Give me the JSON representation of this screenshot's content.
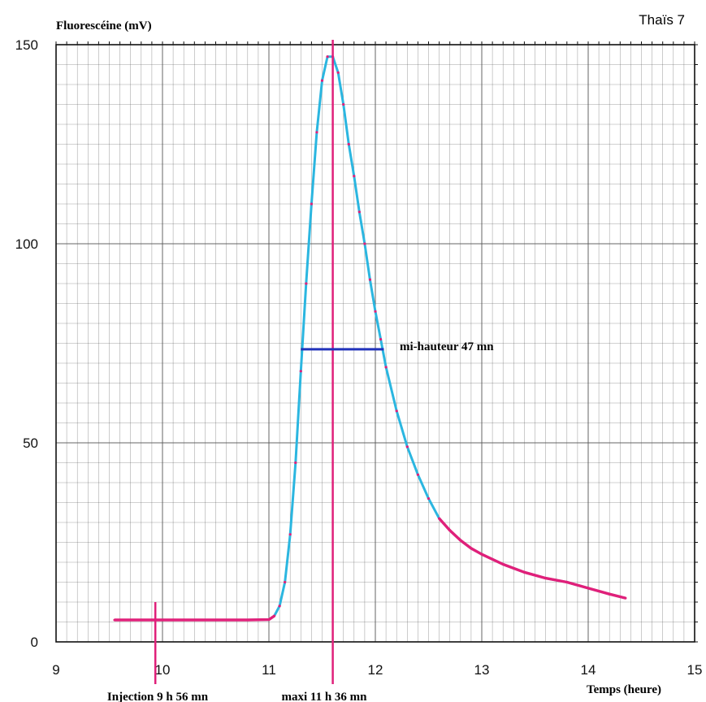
{
  "chart_data": {
    "type": "line",
    "title": "Thaïs 7",
    "ylabel": "Fluorescéine (mV)",
    "xlabel": "Temps (heure)",
    "xlim": [
      9,
      15
    ],
    "ylim": [
      0,
      150
    ],
    "x_ticks": [
      9,
      10,
      11,
      12,
      13,
      14,
      15
    ],
    "y_ticks": [
      0,
      50,
      100,
      150
    ],
    "grid": true,
    "colors": {
      "grid": "#555555",
      "curve": "#2bb6e0",
      "dots": "#e0207a",
      "markers": "#e0207a",
      "half_width": "#2233bb"
    },
    "series": [
      {
        "x": [
          9.55,
          10.0,
          10.5,
          10.8,
          11.0,
          11.05,
          11.1,
          11.15,
          11.2,
          11.25,
          11.3,
          11.35,
          11.4,
          11.45,
          11.5,
          11.55,
          11.6,
          11.65,
          11.7,
          11.75,
          11.8,
          11.85,
          11.9,
          11.95,
          12.0,
          12.05,
          12.1,
          12.2,
          12.3,
          12.4,
          12.5,
          12.6,
          12.7,
          12.8,
          12.9,
          13.0,
          13.2,
          13.4,
          13.6,
          13.8,
          14.0,
          14.2,
          14.35
        ],
        "y": [
          5.5,
          5.5,
          5.5,
          5.5,
          5.6,
          6.5,
          9,
          15,
          27,
          45,
          68,
          90,
          110,
          128,
          141,
          147,
          147,
          143,
          135,
          125,
          117,
          108,
          100,
          91,
          83,
          76,
          69,
          58,
          49,
          42,
          36,
          31,
          28,
          25.5,
          23.5,
          22,
          19.5,
          17.5,
          16,
          15,
          13.5,
          12,
          11
        ]
      }
    ],
    "annotations": {
      "injection": {
        "x": 9.933,
        "label": "Injection 9 h 56 mn"
      },
      "maximum": {
        "x": 11.6,
        "label": "maxi 11 h 36 mn"
      },
      "half_height": {
        "x_start": 11.3,
        "x_end": 12.08,
        "y": 73.5,
        "label": "mi-hauteur 47 mn"
      }
    }
  }
}
